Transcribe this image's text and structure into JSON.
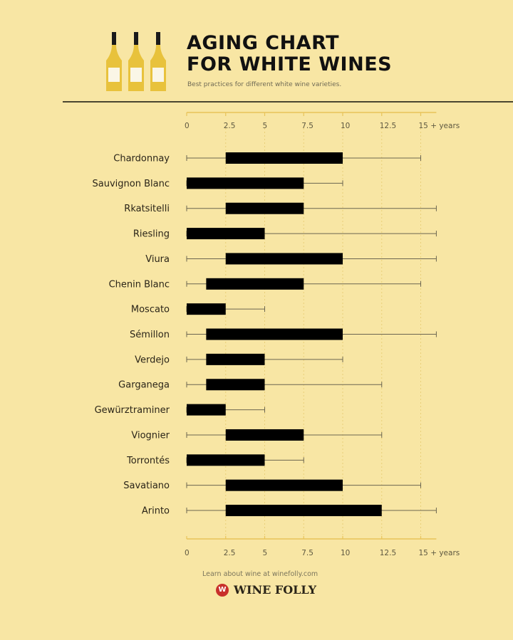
{
  "header": {
    "title_line1": "AGING CHART",
    "title_line2": "FOR WHITE WINES",
    "subtitle": "Best practices for different white wine varieties."
  },
  "footer": {
    "note": "Learn about wine at winefolly.com",
    "brand": "WINE FOLLY"
  },
  "colors": {
    "background": "#f8e6a4",
    "bar": "#000000",
    "axis": "#e8c35a",
    "whisker": "#6b6550",
    "bottle": "#e8c23c"
  },
  "chart_data": {
    "type": "bar",
    "orientation": "horizontal",
    "xlim": [
      0,
      16
    ],
    "x_ticks": [
      0,
      2.5,
      5,
      7.5,
      10,
      12.5,
      15
    ],
    "x_tick_labels": [
      "0",
      "2.5",
      "5",
      "7.5",
      "10",
      "12.5",
      "15 + years"
    ],
    "grid": true,
    "categories": [
      "Chardonnay",
      "Sauvignon Blanc",
      "Rkatsitelli",
      "Riesling",
      "Viura",
      "Chenin Blanc",
      "Moscato",
      "Sémillon",
      "Verdejo",
      "Garganega",
      "Gewürztraminer",
      "Viognier",
      "Torrontés",
      "Savatiano",
      "Arinto"
    ],
    "bar_start": [
      2.5,
      0,
      2.5,
      0,
      2.5,
      1.25,
      0,
      1.25,
      1.25,
      1.25,
      0,
      2.5,
      0,
      2.5,
      2.5
    ],
    "bar_end": [
      10,
      7.5,
      7.5,
      5,
      10,
      7.5,
      2.5,
      10,
      5,
      5,
      2.5,
      7.5,
      5,
      10,
      12.5
    ],
    "range_start": [
      0,
      0,
      0,
      0,
      0,
      0,
      0,
      0,
      0,
      0,
      0,
      0,
      0,
      0,
      0
    ],
    "range_end": [
      15,
      10,
      16,
      16,
      16,
      15,
      5,
      16,
      10,
      12.5,
      5,
      12.5,
      7.5,
      15,
      16
    ]
  }
}
